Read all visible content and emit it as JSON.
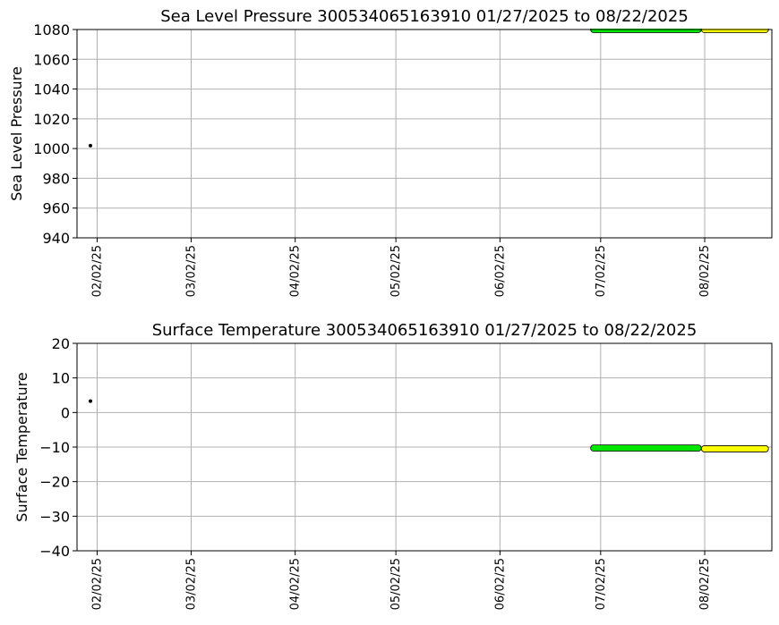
{
  "chart_data": [
    {
      "type": "scatter",
      "title": "Sea Level Pressure 300534065163910  01/27/2025 to 08/22/2025",
      "xlabel": "",
      "ylabel": "Sea Level Pressure",
      "ylim": [
        940,
        1080
      ],
      "yticks": [
        "940",
        "960",
        "980",
        "1000",
        "1020",
        "1040",
        "1060",
        "1080"
      ],
      "xlim": [
        "2025-01-27",
        "2025-08-22"
      ],
      "xticks": [
        {
          "date": "2025-02-02",
          "label": "02/02/25"
        },
        {
          "date": "2025-03-02",
          "label": "03/02/25"
        },
        {
          "date": "2025-04-02",
          "label": "04/02/25"
        },
        {
          "date": "2025-05-02",
          "label": "05/02/25"
        },
        {
          "date": "2025-06-02",
          "label": "06/02/25"
        },
        {
          "date": "2025-07-02",
          "label": "07/02/25"
        },
        {
          "date": "2025-08-02",
          "label": "08/02/25"
        }
      ],
      "grid": true,
      "series": [
        {
          "color": "#000000",
          "points": [
            {
              "x": "2025-01-31",
              "y": 1002
            }
          ]
        },
        {
          "color": "#00e600",
          "x_range": [
            "2025-06-29",
            "2025-08-01"
          ],
          "y": 1080
        },
        {
          "color": "#ffff00",
          "x_range": [
            "2025-08-01",
            "2025-08-21"
          ],
          "y": 1080
        }
      ]
    },
    {
      "type": "scatter",
      "title": "Surface Temperature 300534065163910  01/27/2025 to 08/22/2025",
      "xlabel": "",
      "ylabel": "Surface Temperature",
      "ylim": [
        -40,
        20
      ],
      "yticks": [
        "−40",
        "−30",
        "−20",
        "−10",
        "0",
        "10",
        "20"
      ],
      "xlim": [
        "2025-01-27",
        "2025-08-22"
      ],
      "xticks": [
        {
          "date": "2025-02-02",
          "label": "02/02/25"
        },
        {
          "date": "2025-03-02",
          "label": "03/02/25"
        },
        {
          "date": "2025-04-02",
          "label": "04/02/25"
        },
        {
          "date": "2025-05-02",
          "label": "05/02/25"
        },
        {
          "date": "2025-06-02",
          "label": "06/02/25"
        },
        {
          "date": "2025-07-02",
          "label": "07/02/25"
        },
        {
          "date": "2025-08-02",
          "label": "08/02/25"
        }
      ],
      "grid": true,
      "series": [
        {
          "color": "#000000",
          "points": [
            {
              "x": "2025-01-31",
              "y": 3.3
            }
          ]
        },
        {
          "color": "#00e600",
          "x_range": [
            "2025-06-29",
            "2025-08-01"
          ],
          "y": -10.3
        },
        {
          "color": "#ffff00",
          "x_range": [
            "2025-08-01",
            "2025-08-21"
          ],
          "y": -10.5
        }
      ]
    }
  ]
}
